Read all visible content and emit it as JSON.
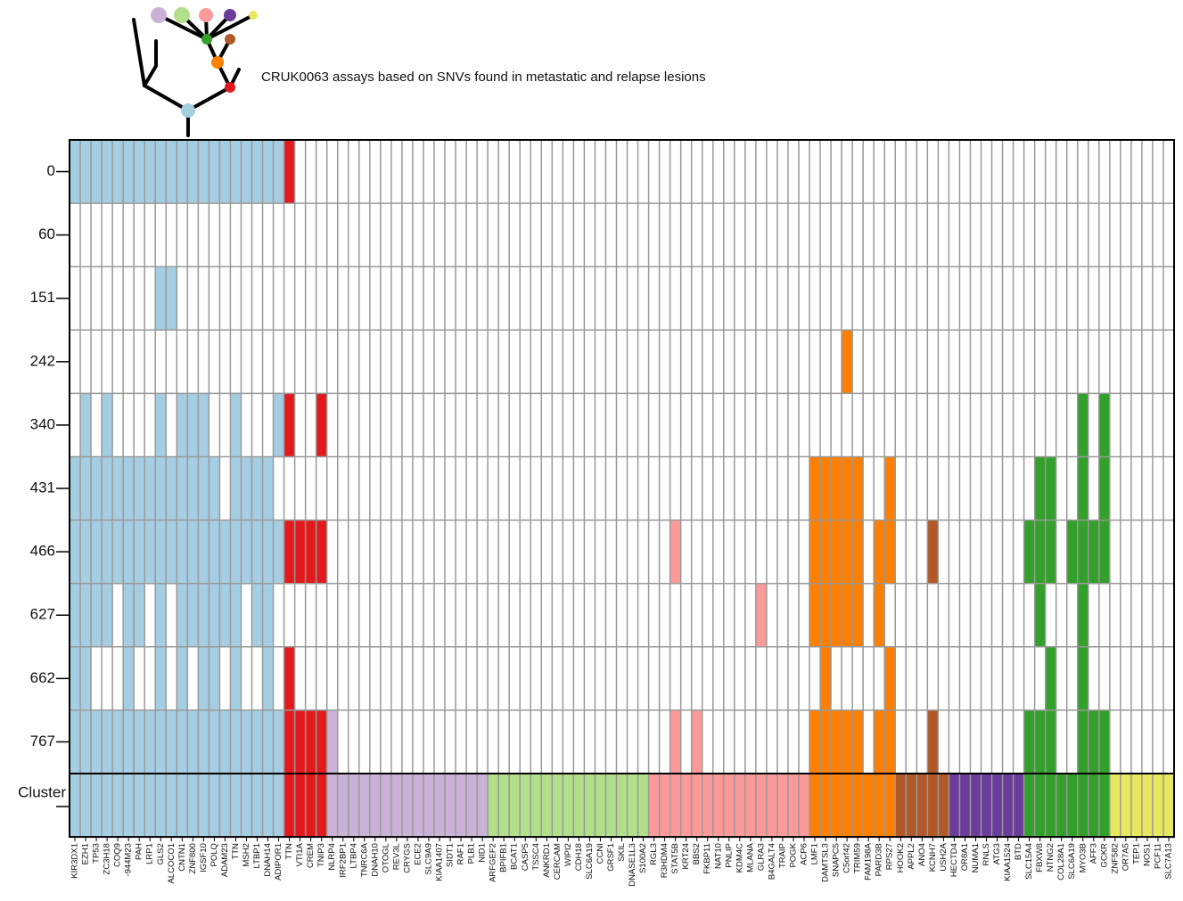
{
  "chart_data": {
    "type": "heatmap",
    "title": "CRUK0063 assays based on SNVs found in metastatic and relapse lesions",
    "rows": [
      0,
      60,
      151,
      242,
      340,
      431,
      466,
      627,
      662,
      767
    ],
    "cluster_label": "Cluster",
    "columns": [
      "KIR3DX1",
      "EZH1",
      "TP53",
      "ZC3H18",
      "COQ9",
      "-944M23",
      "PAH",
      "LRP1",
      "GLS2",
      "ALCOCO1",
      "CNTN1",
      "ZNF800",
      "IGSF10",
      "POLQ",
      "ADAM23",
      "TTN",
      "MSH2",
      "LTBP1",
      "DNAH14",
      "ADIPOR1",
      "TTN",
      "VTI1A",
      "CREM",
      "TNIP3",
      "NLRP4",
      "IRF2BP1",
      "LTBP4",
      "TNRC6A",
      "DNAH10",
      "OTOGL",
      "REV3L",
      "CRYGS",
      "ECE2",
      "SLC9A9",
      "KIAA1407",
      "SIDT1",
      "RAF1",
      "PLB1",
      "NID1",
      "ARFGEF2",
      "BPIFB1",
      "BCAT1",
      "CASP5",
      "TSSC4",
      "ANKRD1",
      "CERCAM",
      "WIPI2",
      "CDH18",
      "SLC6A19",
      "CCNI",
      "GRSF1",
      "SKIL",
      "DNASE1L3",
      "S100A2",
      "RGL3",
      "R3HDM4",
      "STAT5B",
      "KRT24",
      "BBS2",
      "FKBP11",
      "NAT10",
      "PNLIP",
      "KDM4C",
      "MLANA",
      "GLRA3",
      "B4GALT4",
      "TRAIP",
      "POGK",
      "ACP6",
      "LMF1",
      "DAMTSL3",
      "SNAPC5",
      "C5orf42",
      "TRIM59",
      "FAM198A",
      "PARD3B",
      "RPS27",
      "HOOK2",
      "APPL2",
      "ANO4",
      "KCNH7",
      "USH2A",
      "HECTD4",
      "OR8A1",
      "NUMA1",
      "RNLS",
      "ATG3",
      "KIAA1524",
      "BTD",
      "SLC15A4",
      "FBXW8",
      "NTNG2",
      "COL28A1",
      "SLC6A19",
      "MYO3B",
      "AFF3",
      "GCKR",
      "ZNF582",
      "OR7A5",
      "TEP1",
      "NOS1",
      "PCF11",
      "SLC7A13"
    ],
    "cluster_colors": [
      "#a6cee3",
      "#e31a1c",
      "#cab2d6",
      "#b2df8a",
      "#fb9a99",
      "#ff7f00",
      "#b15928",
      "#6a3d9a",
      "#33a02c",
      "#e8e85e"
    ],
    "column_clusters": [
      0,
      0,
      0,
      0,
      0,
      0,
      0,
      0,
      0,
      0,
      0,
      0,
      0,
      0,
      0,
      0,
      0,
      0,
      0,
      0,
      1,
      1,
      1,
      1,
      2,
      2,
      2,
      2,
      2,
      2,
      2,
      2,
      2,
      2,
      2,
      2,
      2,
      2,
      2,
      3,
      3,
      3,
      3,
      3,
      3,
      3,
      3,
      3,
      3,
      3,
      3,
      3,
      3,
      3,
      4,
      4,
      4,
      4,
      4,
      4,
      4,
      4,
      4,
      4,
      4,
      4,
      4,
      4,
      4,
      5,
      5,
      5,
      5,
      5,
      5,
      5,
      5,
      6,
      6,
      6,
      6,
      6,
      7,
      7,
      7,
      7,
      7,
      7,
      7,
      8,
      8,
      8,
      8,
      8,
      8,
      8,
      8,
      9,
      9,
      9,
      9,
      9,
      9
    ],
    "matrix": [
      [
        1,
        1,
        1,
        1,
        1,
        1,
        1,
        1,
        1,
        1,
        1,
        1,
        1,
        1,
        1,
        1,
        1,
        1,
        1,
        1,
        1,
        0,
        0,
        0,
        0,
        0,
        0,
        0,
        0,
        0,
        0,
        0,
        0,
        0,
        0,
        0,
        0,
        0,
        0,
        0,
        0,
        0,
        0,
        0,
        0,
        0,
        0,
        0,
        0,
        0,
        0,
        0,
        0,
        0,
        0,
        0,
        0,
        0,
        0,
        0,
        0,
        0,
        0,
        0,
        0,
        0,
        0,
        0,
        0,
        0,
        0,
        0,
        0,
        0,
        0,
        0,
        0,
        0,
        0,
        0,
        0,
        0,
        0,
        0,
        0,
        0,
        0,
        0,
        0,
        0,
        0,
        0,
        0,
        0,
        0,
        0,
        0,
        0,
        0,
        0,
        0,
        0,
        0
      ],
      [
        0,
        0,
        0,
        0,
        0,
        0,
        0,
        0,
        0,
        0,
        0,
        0,
        0,
        0,
        0,
        0,
        0,
        0,
        0,
        0,
        0,
        0,
        0,
        0,
        0,
        0,
        0,
        0,
        0,
        0,
        0,
        0,
        0,
        0,
        0,
        0,
        0,
        0,
        0,
        0,
        0,
        0,
        0,
        0,
        0,
        0,
        0,
        0,
        0,
        0,
        0,
        0,
        0,
        0,
        0,
        0,
        0,
        0,
        0,
        0,
        0,
        0,
        0,
        0,
        0,
        0,
        0,
        0,
        0,
        0,
        0,
        0,
        0,
        0,
        0,
        0,
        0,
        0,
        0,
        0,
        0,
        0,
        0,
        0,
        0,
        0,
        0,
        0,
        0,
        0,
        0,
        0,
        0,
        0,
        0,
        0,
        0,
        0,
        0,
        0,
        0,
        0,
        0
      ],
      [
        0,
        0,
        0,
        0,
        0,
        0,
        0,
        0,
        1,
        1,
        0,
        0,
        0,
        0,
        0,
        0,
        0,
        0,
        0,
        0,
        0,
        0,
        0,
        0,
        0,
        0,
        0,
        0,
        0,
        0,
        0,
        0,
        0,
        0,
        0,
        0,
        0,
        0,
        0,
        0,
        0,
        0,
        0,
        0,
        0,
        0,
        0,
        0,
        0,
        0,
        0,
        0,
        0,
        0,
        0,
        0,
        0,
        0,
        0,
        0,
        0,
        0,
        0,
        0,
        0,
        0,
        0,
        0,
        0,
        0,
        0,
        0,
        0,
        0,
        0,
        0,
        0,
        0,
        0,
        0,
        0,
        0,
        0,
        0,
        0,
        0,
        0,
        0,
        0,
        0,
        0,
        0,
        0,
        0,
        0,
        0,
        0,
        0,
        0,
        0,
        0,
        0,
        0
      ],
      [
        0,
        0,
        0,
        0,
        0,
        0,
        0,
        0,
        0,
        0,
        0,
        0,
        0,
        0,
        0,
        0,
        0,
        0,
        0,
        0,
        0,
        0,
        0,
        0,
        0,
        0,
        0,
        0,
        0,
        0,
        0,
        0,
        0,
        0,
        0,
        0,
        0,
        0,
        0,
        0,
        0,
        0,
        0,
        0,
        0,
        0,
        0,
        0,
        0,
        0,
        0,
        0,
        0,
        0,
        0,
        0,
        0,
        0,
        0,
        0,
        0,
        0,
        0,
        0,
        0,
        0,
        0,
        0,
        0,
        0,
        0,
        0,
        1,
        0,
        0,
        0,
        0,
        0,
        0,
        0,
        0,
        0,
        0,
        0,
        0,
        0,
        0,
        0,
        0,
        0,
        0,
        0,
        0,
        0,
        0,
        0,
        0,
        0,
        0,
        0,
        0,
        0,
        0
      ],
      [
        0,
        1,
        0,
        1,
        0,
        0,
        0,
        0,
        1,
        0,
        1,
        1,
        1,
        0,
        0,
        1,
        0,
        0,
        0,
        1,
        1,
        0,
        0,
        1,
        0,
        0,
        0,
        0,
        0,
        0,
        0,
        0,
        0,
        0,
        0,
        0,
        0,
        0,
        0,
        0,
        0,
        0,
        0,
        0,
        0,
        0,
        0,
        0,
        0,
        0,
        0,
        0,
        0,
        0,
        0,
        0,
        0,
        0,
        0,
        0,
        0,
        0,
        0,
        0,
        0,
        0,
        0,
        0,
        0,
        0,
        0,
        0,
        0,
        0,
        0,
        0,
        0,
        0,
        0,
        0,
        0,
        0,
        0,
        0,
        0,
        0,
        0,
        0,
        0,
        0,
        0,
        0,
        0,
        0,
        1,
        0,
        1,
        0,
        0,
        0,
        0,
        0,
        0
      ],
      [
        1,
        1,
        1,
        1,
        1,
        1,
        1,
        1,
        1,
        1,
        1,
        1,
        1,
        1,
        0,
        1,
        1,
        1,
        1,
        0,
        0,
        0,
        0,
        0,
        0,
        0,
        0,
        0,
        0,
        0,
        0,
        0,
        0,
        0,
        0,
        0,
        0,
        0,
        0,
        0,
        0,
        0,
        0,
        0,
        0,
        0,
        0,
        0,
        0,
        0,
        0,
        0,
        0,
        0,
        0,
        0,
        0,
        0,
        0,
        0,
        0,
        0,
        0,
        0,
        0,
        0,
        0,
        0,
        0,
        1,
        1,
        1,
        1,
        1,
        0,
        0,
        1,
        0,
        0,
        0,
        0,
        0,
        0,
        0,
        0,
        0,
        0,
        0,
        0,
        0,
        1,
        1,
        0,
        0,
        1,
        0,
        1,
        0,
        0,
        0,
        0,
        0,
        0
      ],
      [
        1,
        1,
        1,
        1,
        1,
        1,
        1,
        1,
        1,
        1,
        1,
        1,
        1,
        1,
        1,
        1,
        1,
        1,
        1,
        1,
        1,
        1,
        1,
        1,
        0,
        0,
        0,
        0,
        0,
        0,
        0,
        0,
        0,
        0,
        0,
        0,
        0,
        0,
        0,
        0,
        0,
        0,
        0,
        0,
        0,
        0,
        0,
        0,
        0,
        0,
        0,
        0,
        0,
        0,
        0,
        0,
        1,
        0,
        0,
        0,
        0,
        0,
        0,
        0,
        0,
        0,
        0,
        0,
        0,
        1,
        1,
        1,
        1,
        1,
        0,
        1,
        1,
        0,
        0,
        0,
        1,
        0,
        0,
        0,
        0,
        0,
        0,
        0,
        0,
        1,
        1,
        1,
        0,
        1,
        1,
        1,
        1,
        0,
        0,
        0,
        0,
        0,
        0
      ],
      [
        1,
        1,
        1,
        1,
        0,
        1,
        1,
        0,
        1,
        0,
        1,
        1,
        1,
        1,
        1,
        1,
        0,
        1,
        1,
        0,
        0,
        0,
        0,
        0,
        0,
        0,
        0,
        0,
        0,
        0,
        0,
        0,
        0,
        0,
        0,
        0,
        0,
        0,
        0,
        0,
        0,
        0,
        0,
        0,
        0,
        0,
        0,
        0,
        0,
        0,
        0,
        0,
        0,
        0,
        0,
        0,
        0,
        0,
        0,
        0,
        0,
        0,
        0,
        0,
        1,
        0,
        0,
        0,
        0,
        1,
        1,
        1,
        1,
        1,
        0,
        1,
        0,
        0,
        0,
        0,
        0,
        0,
        0,
        0,
        0,
        0,
        0,
        0,
        0,
        0,
        1,
        0,
        0,
        0,
        1,
        0,
        0,
        0,
        0,
        0,
        0,
        0,
        0
      ],
      [
        1,
        1,
        0,
        0,
        0,
        1,
        0,
        0,
        1,
        0,
        1,
        0,
        1,
        1,
        0,
        1,
        0,
        0,
        1,
        0,
        1,
        0,
        0,
        0,
        0,
        0,
        0,
        0,
        0,
        0,
        0,
        0,
        0,
        0,
        0,
        0,
        0,
        0,
        0,
        0,
        0,
        0,
        0,
        0,
        0,
        0,
        0,
        0,
        0,
        0,
        0,
        0,
        0,
        0,
        0,
        0,
        0,
        0,
        0,
        0,
        0,
        0,
        0,
        0,
        0,
        0,
        0,
        0,
        0,
        0,
        1,
        0,
        0,
        0,
        0,
        0,
        1,
        0,
        0,
        0,
        0,
        0,
        0,
        0,
        0,
        0,
        0,
        0,
        0,
        0,
        0,
        1,
        0,
        0,
        1,
        0,
        0,
        0,
        0,
        0,
        0,
        0,
        0
      ],
      [
        1,
        1,
        1,
        1,
        1,
        1,
        1,
        1,
        1,
        1,
        1,
        1,
        1,
        1,
        1,
        1,
        1,
        1,
        1,
        1,
        1,
        1,
        1,
        1,
        1,
        0,
        0,
        0,
        0,
        0,
        0,
        0,
        0,
        0,
        0,
        0,
        0,
        0,
        0,
        0,
        0,
        0,
        0,
        0,
        0,
        0,
        0,
        0,
        0,
        0,
        0,
        0,
        0,
        0,
        0,
        0,
        1,
        0,
        1,
        0,
        0,
        0,
        0,
        0,
        0,
        0,
        0,
        0,
        0,
        1,
        1,
        1,
        1,
        1,
        0,
        1,
        1,
        0,
        0,
        0,
        1,
        0,
        0,
        0,
        0,
        0,
        0,
        0,
        0,
        1,
        1,
        1,
        0,
        0,
        1,
        1,
        1,
        0,
        0,
        0,
        0,
        0,
        0
      ]
    ]
  }
}
